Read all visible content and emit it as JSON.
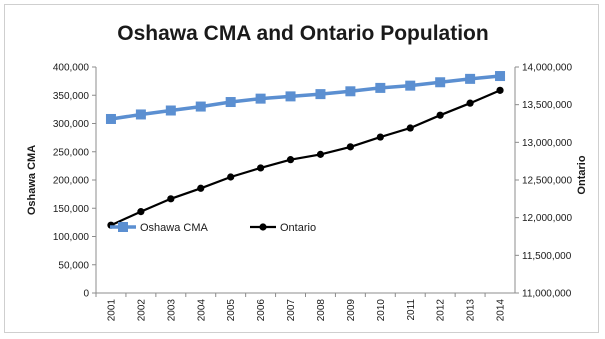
{
  "chart_data": {
    "type": "line",
    "title": "Oshawa CMA and Ontario Population",
    "x": [
      "2001",
      "2002",
      "2003",
      "2004",
      "2005",
      "2006",
      "2007",
      "2008",
      "2009",
      "2010",
      "2011",
      "2012",
      "2013",
      "2014"
    ],
    "y_left": {
      "label": "Oshawa CMA",
      "range": [
        0,
        400000
      ],
      "ticks": [
        "0",
        "50,000",
        "100,000",
        "150,000",
        "200,000",
        "250,000",
        "300,000",
        "350,000",
        "400,000"
      ]
    },
    "y_right": {
      "label": "Ontario",
      "range": [
        11000000,
        14000000
      ],
      "ticks": [
        "11,000,000",
        "11,500,000",
        "12,000,000",
        "12,500,000",
        "13,000,000",
        "13,500,000",
        "14,000,000"
      ]
    },
    "series": [
      {
        "name": "Oshawa CMA",
        "axis": "left",
        "color": "#5b8fd1",
        "marker": "square",
        "values": [
          308000,
          316000,
          323000,
          330000,
          338000,
          344000,
          348000,
          352000,
          357000,
          363000,
          367000,
          373000,
          379000,
          384000
        ]
      },
      {
        "name": "Ontario",
        "axis": "right",
        "color": "#000000",
        "marker": "circle",
        "values": [
          11900000,
          12080000,
          12250000,
          12390000,
          12540000,
          12660000,
          12770000,
          12840000,
          12940000,
          13070000,
          13190000,
          13360000,
          13520000,
          13690000
        ]
      }
    ],
    "legend": "inside-left",
    "grid": false
  }
}
